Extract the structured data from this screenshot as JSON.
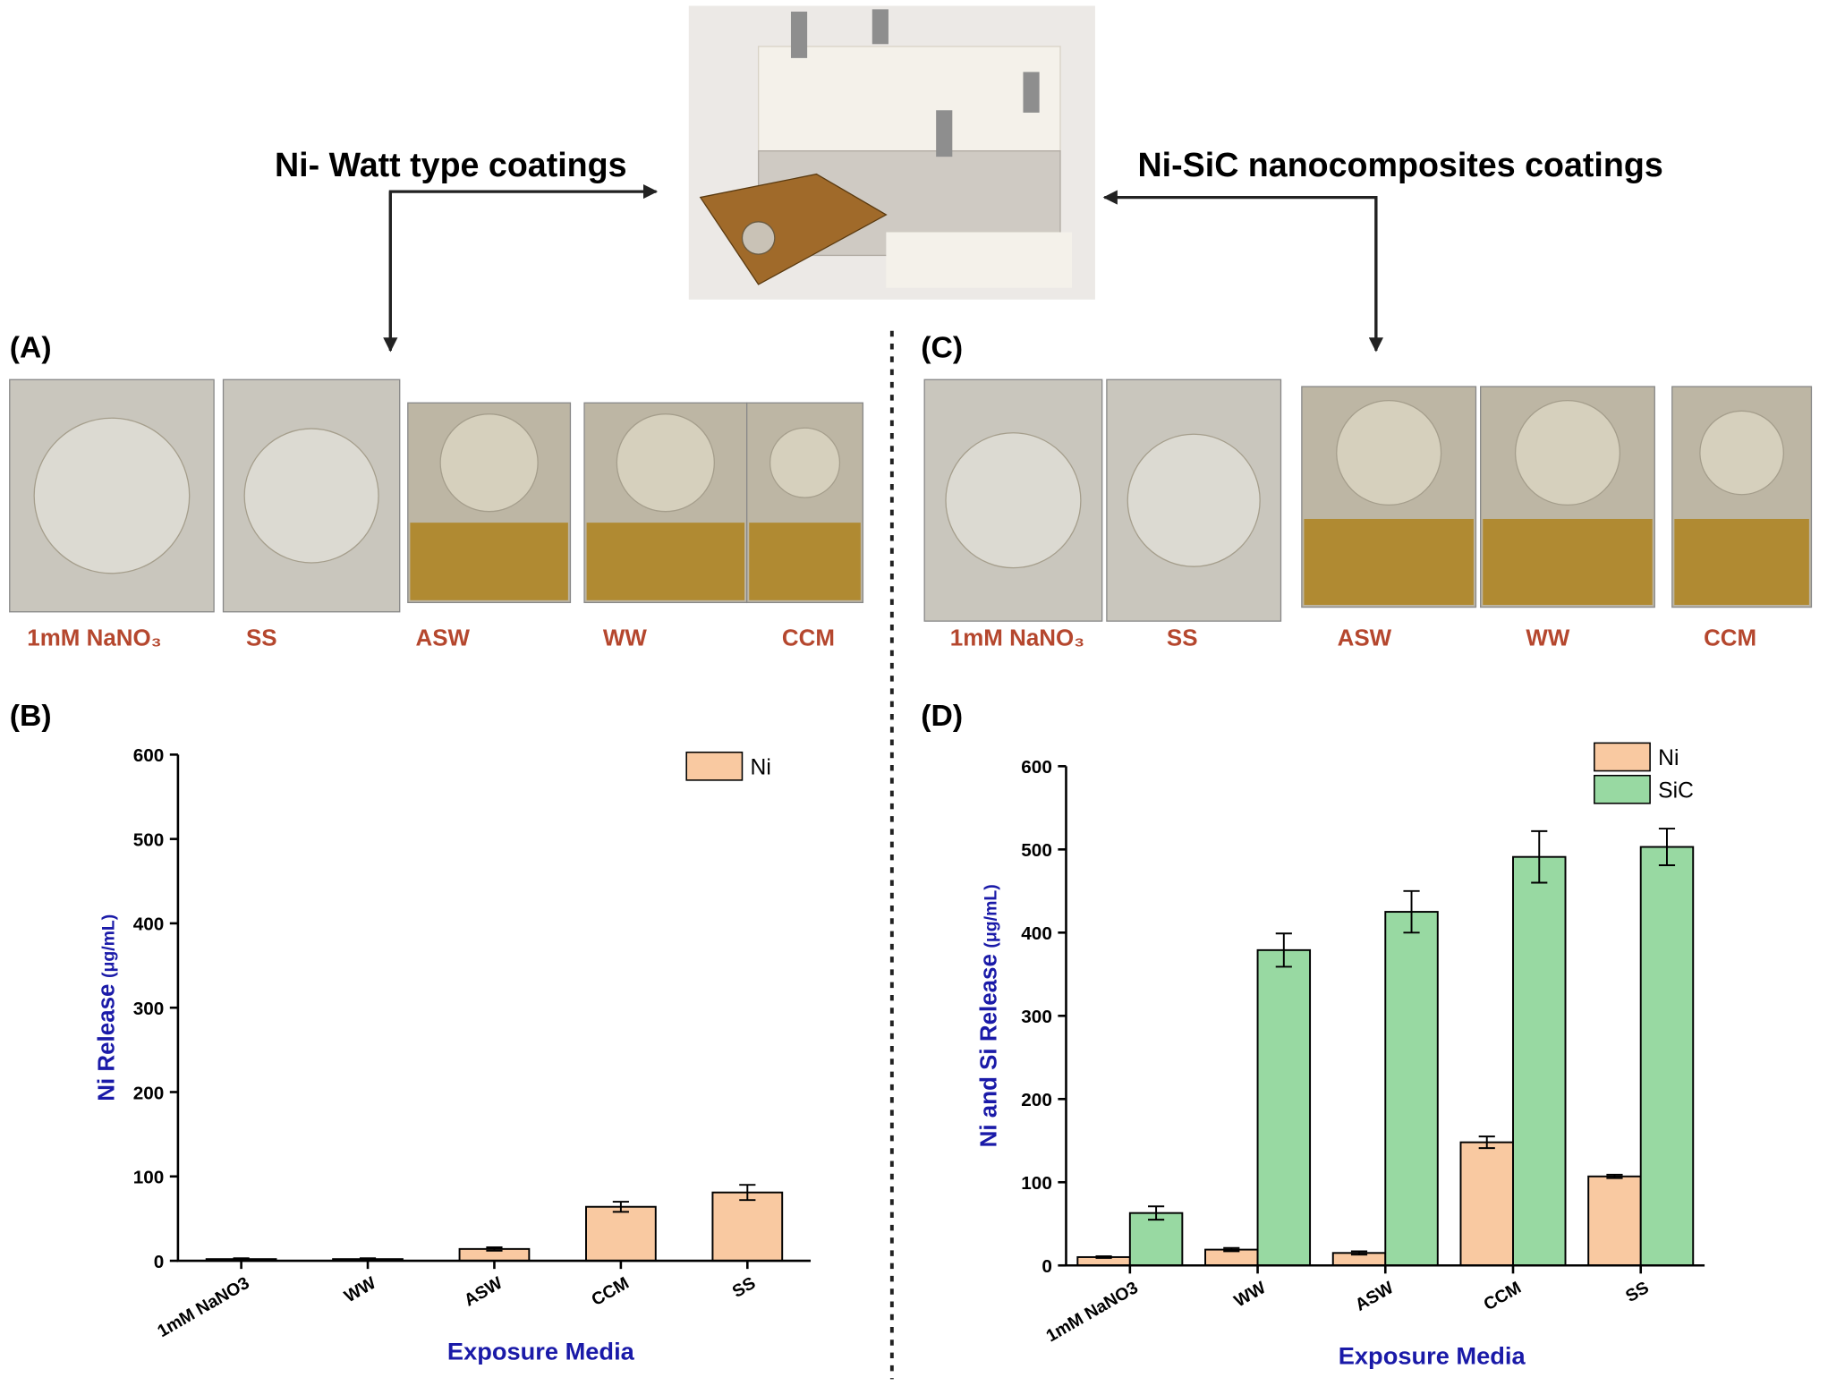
{
  "figure": {
    "left_heading": "Ni- Watt type coatings",
    "right_heading": "Ni-SiC nanocomposites coatings",
    "panel_a": "(A)",
    "panel_b": "(B)",
    "panel_c": "(C)",
    "panel_d": "(D)",
    "photos_a": [
      "1mM NaNO₃",
      "SS",
      "ASW",
      "WW",
      "CCM"
    ],
    "photos_c": [
      "1mM NaNO₃",
      "SS",
      "ASW",
      "WW",
      "CCM"
    ]
  },
  "chart_data": [
    {
      "type": "bar",
      "ylabel": "Ni Release",
      "ylabel_unit": "(μg/mL)",
      "xlabel": "Exposure Media",
      "categories": [
        "1mM NaNO3",
        "WW",
        "ASW",
        "CCM",
        "SS"
      ],
      "series": [
        {
          "name": "Ni",
          "color": "#f9c9a1",
          "values": [
            2,
            2,
            14,
            64,
            81
          ],
          "errors": [
            1,
            1,
            2,
            6,
            9
          ]
        }
      ],
      "ylim": [
        0,
        600
      ],
      "yticks": [
        0,
        100,
        200,
        300,
        400,
        500,
        600
      ],
      "legend": "top-right"
    },
    {
      "type": "bar",
      "ylabel": "Ni and Si Release",
      "ylabel_unit": "(μg/mL)",
      "xlabel": "Exposure Media",
      "categories": [
        "1mM NaNO3",
        "WW",
        "ASW",
        "CCM",
        "SS"
      ],
      "series": [
        {
          "name": "Ni",
          "color": "#f9c9a1",
          "values": [
            10,
            19,
            15,
            148,
            107
          ],
          "errors": [
            1,
            2,
            2,
            7,
            2
          ]
        },
        {
          "name": "SiC",
          "color": "#98d9a2",
          "values": [
            63,
            379,
            425,
            491,
            503
          ],
          "errors": [
            8,
            20,
            25,
            31,
            22
          ]
        }
      ],
      "ylim": [
        0,
        600
      ],
      "yticks": [
        0,
        100,
        200,
        300,
        400,
        500,
        600
      ],
      "legend": "top-right"
    }
  ]
}
